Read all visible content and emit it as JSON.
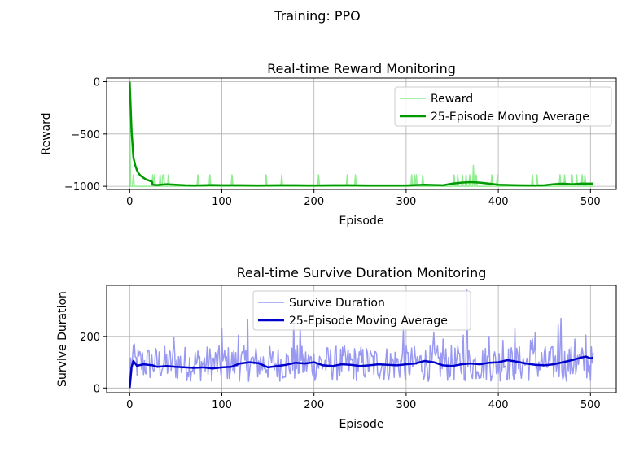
{
  "suptitle": "Training: PPO",
  "chart_data": [
    {
      "type": "line",
      "title": "Real-time Reward Monitoring",
      "xlabel": "Episode",
      "ylabel": "Reward",
      "xlim": [
        -25,
        528
      ],
      "ylim": [
        -1030,
        35
      ],
      "xticks": [
        0,
        100,
        200,
        300,
        400,
        500
      ],
      "yticks": [
        0,
        -500,
        -1000
      ],
      "ytick_labels": [
        "0",
        "−500",
        "−1000"
      ],
      "grid": true,
      "legend_position": "top-right",
      "series": [
        {
          "name": "Reward",
          "color": "#90EE90",
          "generator": "reward",
          "x_range": [
            0,
            503
          ],
          "base": -1000,
          "spike_episodes": [
            4,
            25,
            27,
            33,
            36,
            37,
            42,
            74,
            87,
            111,
            148,
            165,
            205,
            236,
            245,
            306,
            309,
            311,
            318,
            352,
            356,
            361,
            365,
            369,
            373,
            376,
            393,
            399,
            437,
            442,
            467,
            472,
            480,
            485,
            491,
            494
          ],
          "spike_values": [
            -890,
            -890,
            -890,
            -890,
            -890,
            -890,
            -890,
            -890,
            -890,
            -890,
            -890,
            -890,
            -890,
            -890,
            -890,
            -890,
            -890,
            -890,
            -890,
            -890,
            -890,
            -890,
            -890,
            -890,
            -800,
            -890,
            -890,
            -890,
            -890,
            -890,
            -890,
            -890,
            -890,
            -890,
            -890,
            -890
          ]
        },
        {
          "name": "25-Episode Moving Average",
          "color": "#009900",
          "x": [
            0,
            2,
            4,
            6,
            8,
            10,
            12,
            15,
            18,
            21,
            24,
            25,
            30,
            40,
            50,
            60,
            70,
            80,
            90,
            100,
            120,
            140,
            160,
            180,
            200,
            220,
            240,
            260,
            280,
            300,
            320,
            340,
            350,
            360,
            370,
            380,
            390,
            400,
            420,
            440,
            450,
            460,
            470,
            480,
            490,
            503
          ],
          "y": [
            0,
            -470,
            -720,
            -800,
            -850,
            -880,
            -900,
            -920,
            -935,
            -945,
            -955,
            -985,
            -988,
            -980,
            -985,
            -990,
            -992,
            -990,
            -988,
            -990,
            -990,
            -992,
            -990,
            -990,
            -992,
            -990,
            -990,
            -992,
            -992,
            -992,
            -985,
            -990,
            -975,
            -965,
            -960,
            -965,
            -975,
            -985,
            -990,
            -992,
            -990,
            -980,
            -975,
            -980,
            -975,
            -975
          ]
        }
      ]
    },
    {
      "type": "line",
      "title": "Real-time Survive Duration Monitoring",
      "xlabel": "Episode",
      "ylabel": "Survive Duration",
      "xlim": [
        -25,
        528
      ],
      "ylim": [
        -18,
        398
      ],
      "xticks": [
        0,
        100,
        200,
        300,
        400,
        500
      ],
      "yticks": [
        0,
        200
      ],
      "ytick_labels": [
        "0",
        "200"
      ],
      "grid": true,
      "legend_position": "top-center",
      "series": [
        {
          "name": "Survive Duration",
          "color": "#9999F2",
          "generator": "noisy",
          "x_range": [
            0,
            503
          ],
          "low": 25,
          "high": 165,
          "peaks": {
            "5": 170,
            "48": 195,
            "100": 230,
            "118": 205,
            "128": 265,
            "178": 265,
            "185": 245,
            "297": 230,
            "330": 215,
            "340": 190,
            "362": 205,
            "366": 380,
            "390": 200,
            "405": 185,
            "418": 230,
            "435": 185,
            "437": 190,
            "440": 215,
            "465": 245,
            "468": 270,
            "483": 190,
            "495": 205
          }
        },
        {
          "name": "25-Episode Moving Average",
          "color": "#0000CC",
          "x": [
            0,
            2,
            4,
            6,
            8,
            10,
            15,
            20,
            25,
            30,
            40,
            50,
            60,
            70,
            80,
            90,
            100,
            110,
            120,
            130,
            140,
            150,
            160,
            170,
            180,
            190,
            200,
            210,
            220,
            230,
            240,
            250,
            260,
            270,
            280,
            290,
            300,
            310,
            320,
            330,
            340,
            350,
            360,
            370,
            380,
            390,
            400,
            410,
            420,
            430,
            440,
            450,
            460,
            470,
            480,
            490,
            495,
            500,
            503
          ],
          "y": [
            0,
            80,
            105,
            95,
            85,
            88,
            92,
            90,
            88,
            82,
            85,
            82,
            80,
            78,
            80,
            76,
            80,
            82,
            95,
            100,
            96,
            80,
            85,
            90,
            98,
            95,
            100,
            88,
            85,
            92,
            90,
            85,
            88,
            92,
            90,
            88,
            92,
            95,
            105,
            100,
            88,
            85,
            92,
            95,
            92,
            98,
            100,
            108,
            102,
            95,
            90,
            88,
            92,
            100,
            108,
            118,
            122,
            115,
            118
          ]
        }
      ]
    }
  ]
}
